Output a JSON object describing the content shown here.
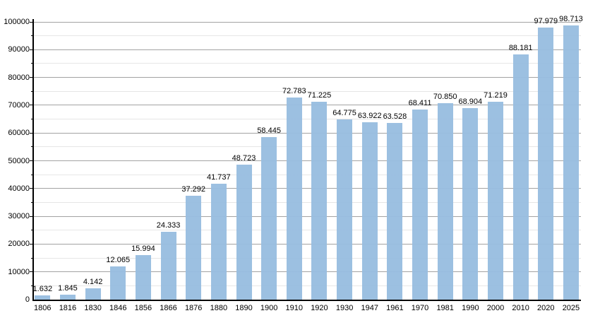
{
  "chart_data": {
    "type": "bar",
    "categories": [
      "1806",
      "1816",
      "1830",
      "1846",
      "1856",
      "1866",
      "1876",
      "1880",
      "1890",
      "1900",
      "1910",
      "1920",
      "1930",
      "1947",
      "1961",
      "1970",
      "1981",
      "1990",
      "2000",
      "2010",
      "2020",
      "2025"
    ],
    "values": [
      1632,
      1845,
      4142,
      12065,
      15994,
      24333,
      37292,
      41737,
      48723,
      58445,
      72783,
      71225,
      64775,
      63922,
      63528,
      68411,
      70850,
      68904,
      71219,
      88181,
      97979,
      98713
    ],
    "value_labels": [
      "1.632",
      "1.845",
      "4.142",
      "12.065",
      "15.994",
      "24.333",
      "37.292",
      "41.737",
      "48.723",
      "58.445",
      "72.783",
      "71.225",
      "64.775",
      "63.922",
      "63.528",
      "68.411",
      "70.850",
      "68.904",
      "71.219",
      "88.181",
      "97.979",
      "98.713"
    ],
    "xlabel": "",
    "ylabel": "",
    "ylim": [
      0,
      100000
    ],
    "y_major_step": 10000,
    "y_minor_step": 5000,
    "y_tick_labels": [
      "0",
      "10000",
      "20000",
      "30000",
      "40000",
      "50000",
      "60000",
      "70000",
      "80000",
      "90000",
      "100000"
    ],
    "grid": "on",
    "legend": "none"
  },
  "colors": {
    "bar_fill": "rgba(152,189,224,0.8)",
    "bar_fill_solid": "#accae6",
    "grid_major": "#a3a3a3",
    "grid_minor": "#e6e6e6",
    "axis": "#000000",
    "text": "#000000",
    "background": "#ffffff"
  }
}
